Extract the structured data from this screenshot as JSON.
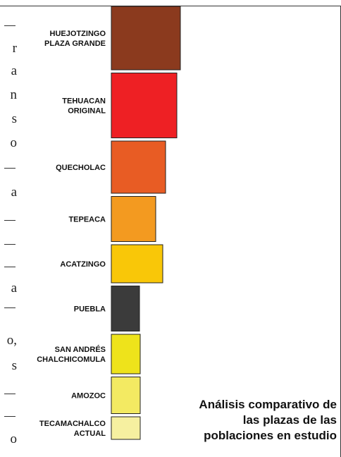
{
  "chart_data": {
    "type": "bar",
    "orientation": "horizontal",
    "categories": [
      "HUEJOTZINGO PLAZA GRANDE",
      "TEHUACAN ORIGINAL",
      "QUECHOLAC",
      "TEPEACA",
      "ACATZINGO",
      "PUEBLA",
      "SAN ANDRÉS CHALCHICOMULA",
      "AMOZOC",
      "TECAMACHALCO ACTUAL"
    ],
    "category_lines": [
      [
        "HUEJOTZINGO",
        "PLAZA GRANDE"
      ],
      [
        "TEHUACAN",
        "ORIGINAL"
      ],
      [
        "QUECHOLAC"
      ],
      [
        "TEPEACA"
      ],
      [
        "ACATZINGO"
      ],
      [
        "PUEBLA"
      ],
      [
        "SAN ANDRÉS",
        "CHALCHICOMULA"
      ],
      [
        "AMOZOC"
      ],
      [
        "TECAMACHALCO",
        "ACTUAL"
      ]
    ],
    "widths": [
      98,
      93,
      77,
      63,
      73,
      40,
      41,
      41,
      41
    ],
    "heights": [
      90,
      92,
      74,
      64,
      54,
      64,
      56,
      52,
      32
    ],
    "colors": [
      "#8b3a1e",
      "#ee2024",
      "#e85c24",
      "#f39a20",
      "#f9c708",
      "#3b3b3b",
      "#eee31b",
      "#f3ea62",
      "#f6f0a0"
    ],
    "title": "Análisis comparativo de las plazas de las poblaciones en estudio",
    "legend": "none",
    "grid": false
  },
  "caption_lines": [
    "Análisis comparativo de",
    "las plazas de las",
    "poblaciones en estudio"
  ],
  "left_fragments": [
    "r",
    "a",
    "n",
    "s",
    "o",
    "a",
    "a",
    "o,",
    "s",
    "o"
  ]
}
